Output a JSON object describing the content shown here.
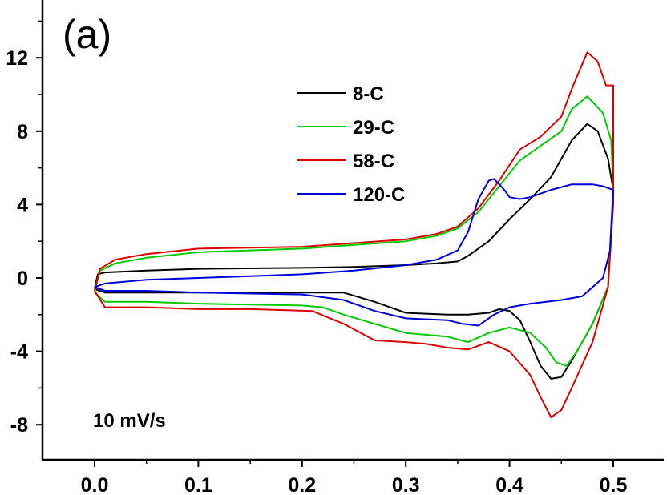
{
  "chart_data": {
    "type": "line",
    "title": "",
    "panel_label": "(a)",
    "annotation": "10 mV/s",
    "xlabel": "",
    "ylabel": "",
    "xlim": [
      0.0,
      0.5
    ],
    "ylim": [
      -10,
      14
    ],
    "xticks": [
      "0.0",
      "0.1",
      "0.2",
      "0.3",
      "0.4",
      "0.5"
    ],
    "yticks": [
      "-8",
      "-4",
      "0",
      "4",
      "8",
      "12"
    ],
    "grid": false,
    "legend_position": "top-center",
    "series": [
      {
        "name": "8-C",
        "color": "#000000",
        "upper": [
          [
            0,
            -0.6
          ],
          [
            0.003,
            0.2
          ],
          [
            0.01,
            0.3
          ],
          [
            0.05,
            0.4
          ],
          [
            0.1,
            0.5
          ],
          [
            0.2,
            0.55
          ],
          [
            0.25,
            0.6
          ],
          [
            0.3,
            0.7
          ],
          [
            0.33,
            0.8
          ],
          [
            0.35,
            0.9
          ],
          [
            0.36,
            1.2
          ],
          [
            0.38,
            2.0
          ],
          [
            0.4,
            3.2
          ],
          [
            0.42,
            4.3
          ],
          [
            0.44,
            5.5
          ],
          [
            0.46,
            7.5
          ],
          [
            0.475,
            8.4
          ],
          [
            0.485,
            8.0
          ],
          [
            0.495,
            6.5
          ],
          [
            0.5,
            4.8
          ]
        ],
        "lower": [
          [
            0.5,
            4.8
          ],
          [
            0.495,
            -0.5
          ],
          [
            0.48,
            -2.5
          ],
          [
            0.46,
            -4.5
          ],
          [
            0.45,
            -5.4
          ],
          [
            0.44,
            -5.5
          ],
          [
            0.43,
            -4.8
          ],
          [
            0.42,
            -3.5
          ],
          [
            0.41,
            -2.3
          ],
          [
            0.4,
            -1.8
          ],
          [
            0.39,
            -1.7
          ],
          [
            0.38,
            -1.9
          ],
          [
            0.36,
            -2.0
          ],
          [
            0.34,
            -2.0
          ],
          [
            0.3,
            -1.9
          ],
          [
            0.27,
            -1.3
          ],
          [
            0.24,
            -0.8
          ],
          [
            0.2,
            -0.8
          ],
          [
            0.1,
            -0.8
          ],
          [
            0.05,
            -0.8
          ],
          [
            0.01,
            -0.8
          ],
          [
            0,
            -0.6
          ]
        ]
      },
      {
        "name": "29-C",
        "color": "#00cc00",
        "upper": [
          [
            0,
            -0.8
          ],
          [
            0.005,
            0.4
          ],
          [
            0.02,
            0.8
          ],
          [
            0.05,
            1.1
          ],
          [
            0.1,
            1.4
          ],
          [
            0.2,
            1.6
          ],
          [
            0.25,
            1.8
          ],
          [
            0.3,
            2.0
          ],
          [
            0.33,
            2.3
          ],
          [
            0.35,
            2.7
          ],
          [
            0.37,
            3.6
          ],
          [
            0.39,
            5.0
          ],
          [
            0.41,
            6.4
          ],
          [
            0.43,
            7.2
          ],
          [
            0.45,
            8.0
          ],
          [
            0.46,
            9.2
          ],
          [
            0.475,
            9.9
          ],
          [
            0.49,
            9.0
          ],
          [
            0.498,
            7.5
          ],
          [
            0.5,
            5.0
          ]
        ],
        "lower": [
          [
            0.5,
            5.0
          ],
          [
            0.495,
            -0.5
          ],
          [
            0.48,
            -2.5
          ],
          [
            0.465,
            -4.0
          ],
          [
            0.455,
            -4.8
          ],
          [
            0.445,
            -4.6
          ],
          [
            0.435,
            -3.8
          ],
          [
            0.42,
            -3.0
          ],
          [
            0.4,
            -2.7
          ],
          [
            0.38,
            -3.0
          ],
          [
            0.36,
            -3.5
          ],
          [
            0.34,
            -3.2
          ],
          [
            0.32,
            -3.1
          ],
          [
            0.3,
            -3.0
          ],
          [
            0.27,
            -2.5
          ],
          [
            0.24,
            -2.0
          ],
          [
            0.22,
            -1.6
          ],
          [
            0.2,
            -1.5
          ],
          [
            0.1,
            -1.4
          ],
          [
            0.05,
            -1.3
          ],
          [
            0.01,
            -1.3
          ],
          [
            0,
            -0.8
          ]
        ]
      },
      {
        "name": "58-C",
        "color": "#dd0000",
        "upper": [
          [
            0,
            -0.7
          ],
          [
            0.005,
            0.5
          ],
          [
            0.02,
            1.0
          ],
          [
            0.05,
            1.3
          ],
          [
            0.1,
            1.6
          ],
          [
            0.2,
            1.7
          ],
          [
            0.25,
            1.9
          ],
          [
            0.3,
            2.1
          ],
          [
            0.33,
            2.4
          ],
          [
            0.35,
            2.8
          ],
          [
            0.37,
            3.8
          ],
          [
            0.39,
            5.3
          ],
          [
            0.41,
            7.0
          ],
          [
            0.43,
            7.7
          ],
          [
            0.45,
            8.8
          ],
          [
            0.46,
            10.3
          ],
          [
            0.475,
            12.3
          ],
          [
            0.485,
            11.8
          ],
          [
            0.493,
            10.5
          ],
          [
            0.5,
            10.5
          ],
          [
            0.5,
            4.0
          ]
        ],
        "lower": [
          [
            0.5,
            4.0
          ],
          [
            0.495,
            -0.5
          ],
          [
            0.48,
            -3.5
          ],
          [
            0.46,
            -6.0
          ],
          [
            0.45,
            -7.2
          ],
          [
            0.44,
            -7.6
          ],
          [
            0.43,
            -6.5
          ],
          [
            0.42,
            -5.3
          ],
          [
            0.4,
            -4.0
          ],
          [
            0.38,
            -3.5
          ],
          [
            0.36,
            -3.9
          ],
          [
            0.34,
            -3.8
          ],
          [
            0.32,
            -3.6
          ],
          [
            0.3,
            -3.5
          ],
          [
            0.27,
            -3.4
          ],
          [
            0.24,
            -2.5
          ],
          [
            0.21,
            -1.8
          ],
          [
            0.15,
            -1.7
          ],
          [
            0.1,
            -1.7
          ],
          [
            0.05,
            -1.6
          ],
          [
            0.01,
            -1.6
          ],
          [
            0,
            -0.7
          ]
        ]
      },
      {
        "name": "120-C",
        "color": "#0000dd",
        "upper": [
          [
            0,
            -0.5
          ],
          [
            0.01,
            -0.3
          ],
          [
            0.05,
            -0.1
          ],
          [
            0.1,
            0.0
          ],
          [
            0.15,
            0.1
          ],
          [
            0.2,
            0.2
          ],
          [
            0.25,
            0.4
          ],
          [
            0.3,
            0.7
          ],
          [
            0.33,
            1.0
          ],
          [
            0.35,
            1.5
          ],
          [
            0.36,
            2.5
          ],
          [
            0.37,
            4.3
          ],
          [
            0.38,
            5.3
          ],
          [
            0.385,
            5.4
          ],
          [
            0.395,
            4.8
          ],
          [
            0.4,
            4.4
          ],
          [
            0.41,
            4.3
          ],
          [
            0.42,
            4.4
          ],
          [
            0.44,
            4.8
          ],
          [
            0.46,
            5.1
          ],
          [
            0.48,
            5.1
          ],
          [
            0.49,
            5.0
          ],
          [
            0.5,
            4.8
          ]
        ],
        "lower": [
          [
            0.5,
            4.8
          ],
          [
            0.497,
            1.5
          ],
          [
            0.49,
            0.0
          ],
          [
            0.47,
            -1.0
          ],
          [
            0.45,
            -1.2
          ],
          [
            0.42,
            -1.4
          ],
          [
            0.4,
            -1.6
          ],
          [
            0.385,
            -2.0
          ],
          [
            0.37,
            -2.6
          ],
          [
            0.355,
            -2.5
          ],
          [
            0.34,
            -2.3
          ],
          [
            0.3,
            -2.2
          ],
          [
            0.27,
            -1.8
          ],
          [
            0.24,
            -1.2
          ],
          [
            0.2,
            -0.9
          ],
          [
            0.1,
            -0.8
          ],
          [
            0.05,
            -0.7
          ],
          [
            0.01,
            -0.7
          ],
          [
            0,
            -0.5
          ]
        ]
      }
    ]
  }
}
